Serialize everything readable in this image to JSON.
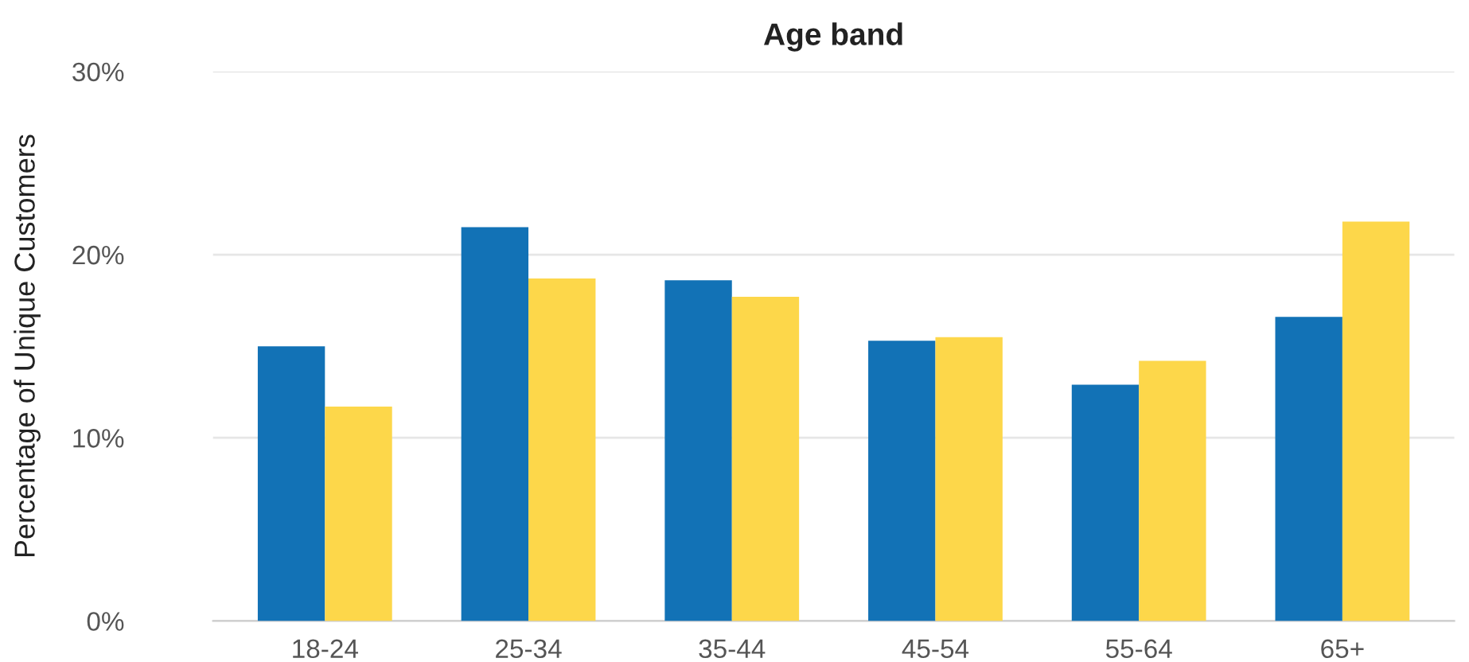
{
  "chart_data": {
    "type": "bar",
    "title": "Age band",
    "ylabel": "Percentage of Unique Customers",
    "categories": [
      "18-24",
      "25-34",
      "35-44",
      "45-54",
      "55-64",
      "65+"
    ],
    "series": [
      {
        "color": "#1272b6",
        "values": [
          15.0,
          21.5,
          18.6,
          15.3,
          12.9,
          16.6
        ]
      },
      {
        "color": "#fdd74a",
        "values": [
          11.7,
          18.7,
          17.7,
          15.5,
          14.2,
          21.8
        ]
      }
    ],
    "ylim": [
      0,
      30
    ],
    "yticks": [
      {
        "value": 0,
        "label": "0%"
      },
      {
        "value": 10,
        "label": "10%"
      },
      {
        "value": 20,
        "label": "20%"
      },
      {
        "value": 30,
        "label": "30%"
      }
    ],
    "grid": "y"
  }
}
